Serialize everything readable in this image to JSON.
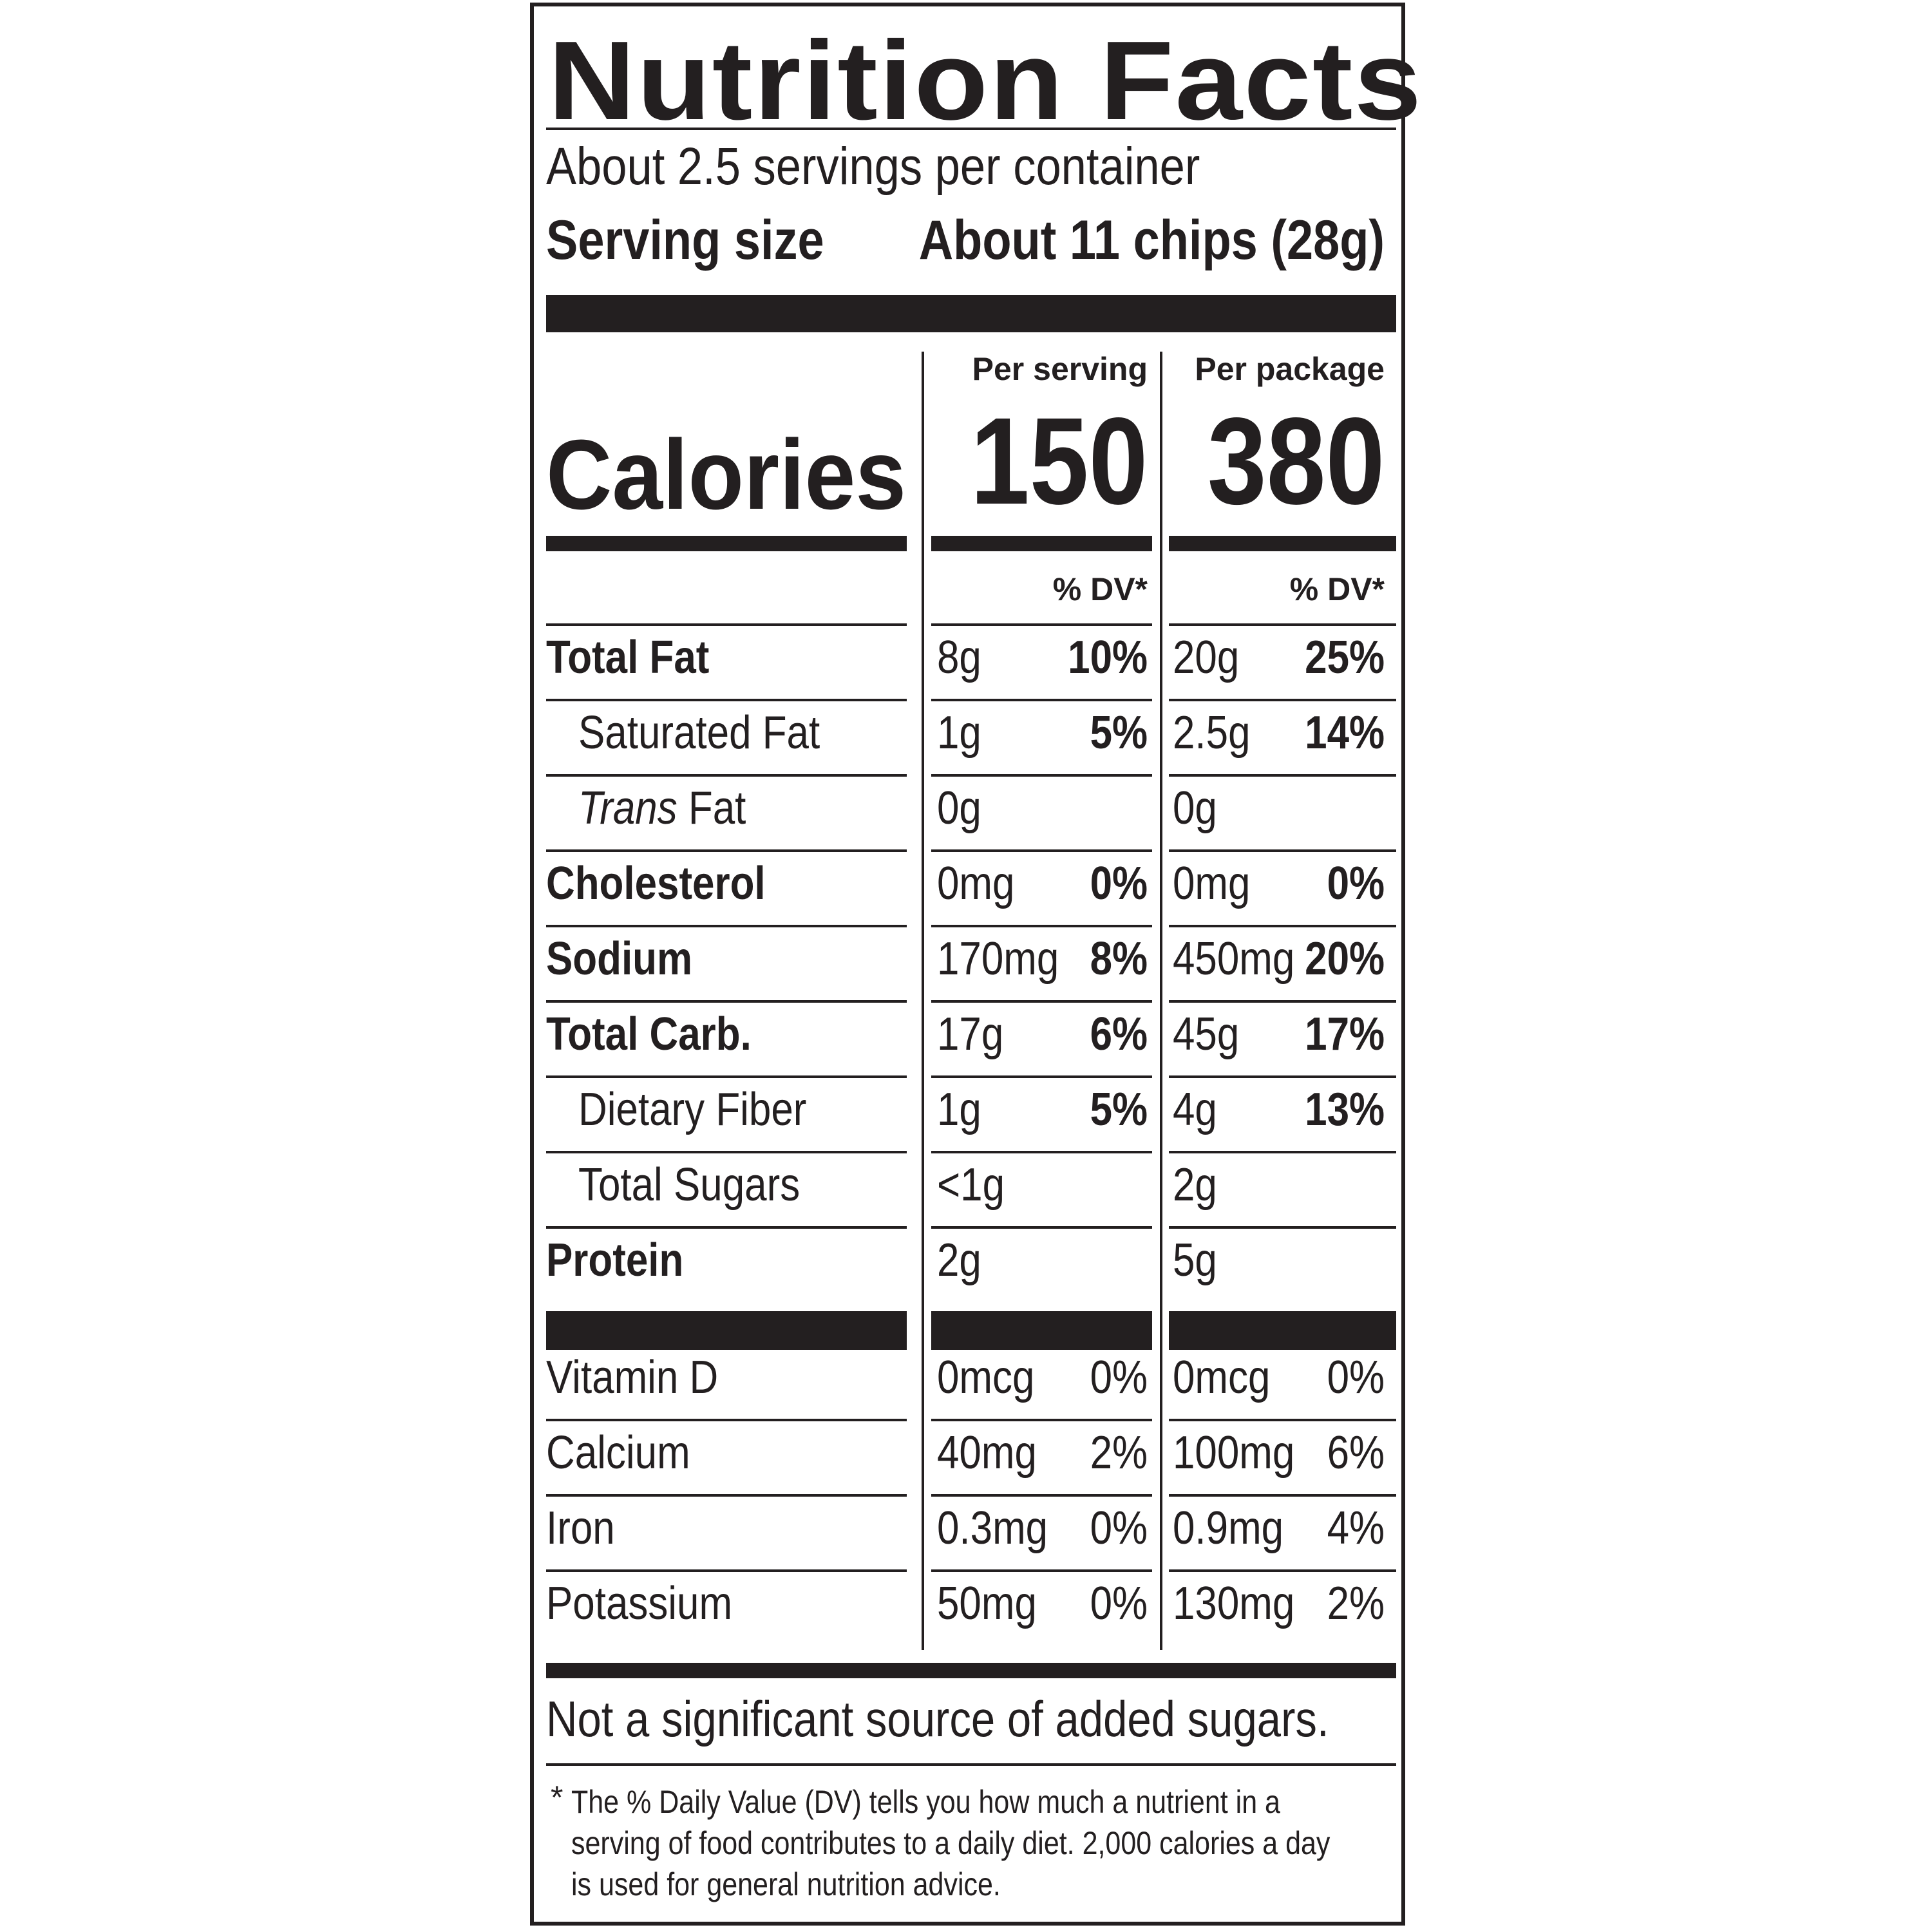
{
  "title": "Nutrition Facts",
  "servings_per_container": "About 2.5 servings per container",
  "serving_size_label": "Serving size",
  "serving_size_value": "About 11 chips (28g)",
  "columns": {
    "serving_header": "Per serving",
    "package_header": "Per package",
    "dv_header": "% DV*"
  },
  "calories": {
    "label": "Calories",
    "per_serving": "150",
    "per_package": "380"
  },
  "nutrients": [
    {
      "name": "Total Fat",
      "serving_amount": "8g",
      "serving_dv": "10%",
      "package_amount": "20g",
      "package_dv": "25%"
    },
    {
      "name": "Saturated Fat",
      "serving_amount": "1g",
      "serving_dv": "5%",
      "package_amount": "2.5g",
      "package_dv": "14%"
    },
    {
      "name_italic": "Trans",
      "name_rest": " Fat",
      "serving_amount": "0g",
      "serving_dv": "",
      "package_amount": "0g",
      "package_dv": ""
    },
    {
      "name": "Cholesterol",
      "serving_amount": "0mg",
      "serving_dv": "0%",
      "package_amount": "0mg",
      "package_dv": "0%"
    },
    {
      "name": "Sodium",
      "serving_amount": "170mg",
      "serving_dv": "8%",
      "package_amount": "450mg",
      "package_dv": "20%"
    },
    {
      "name": "Total Carb.",
      "serving_amount": "17g",
      "serving_dv": "6%",
      "package_amount": "45g",
      "package_dv": "17%"
    },
    {
      "name": "Dietary Fiber",
      "serving_amount": "1g",
      "serving_dv": "5%",
      "package_amount": "4g",
      "package_dv": "13%"
    },
    {
      "name": "Total Sugars",
      "serving_amount": "<1g",
      "serving_dv": "",
      "package_amount": "2g",
      "package_dv": ""
    },
    {
      "name": "Protein",
      "serving_amount": "2g",
      "serving_dv": "",
      "package_amount": "5g",
      "package_dv": ""
    }
  ],
  "vitamins": [
    {
      "name": "Vitamin D",
      "serving_amount": "0mcg",
      "serving_dv": "0%",
      "package_amount": "0mcg",
      "package_dv": "0%"
    },
    {
      "name": "Calcium",
      "serving_amount": "40mg",
      "serving_dv": "2%",
      "package_amount": "100mg",
      "package_dv": "6%"
    },
    {
      "name": "Iron",
      "serving_amount": "0.3mg",
      "serving_dv": "0%",
      "package_amount": "0.9mg",
      "package_dv": "4%"
    },
    {
      "name": "Potassium",
      "serving_amount": "50mg",
      "serving_dv": "0%",
      "package_amount": "130mg",
      "package_dv": "2%"
    }
  ],
  "added_sugars_note": "Not a significant source of added sugars.",
  "footnote_marker": "*",
  "footnote_text": "The % Daily Value (DV) tells you how much a nutrient in a serving of food contributes to a daily diet. 2,000 calories a day is used for general nutrition advice.",
  "colors": {
    "ink": "#231f20",
    "background": "#ffffff"
  }
}
